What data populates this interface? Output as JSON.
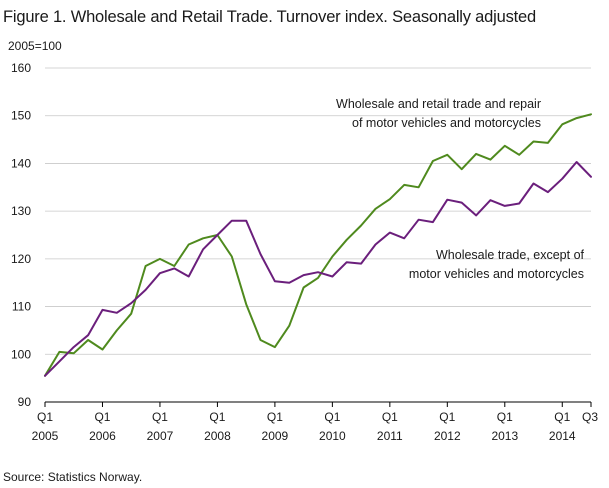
{
  "title": "Figure 1. Wholesale and Retail Trade. Turnover index. Seasonally adjusted",
  "unit_label": "2005=100",
  "source": "Source: Statistics Norway.",
  "chart_data": {
    "type": "line",
    "title": "Figure 1. Wholesale and Retail Trade. Turnover index. Seasonally adjusted",
    "ylabel": "2005=100",
    "xlabel": "",
    "ylim": [
      90,
      160
    ],
    "yticks": [
      90,
      100,
      110,
      120,
      130,
      140,
      150,
      160
    ],
    "grid": "horizontal",
    "x": [
      "2005Q1",
      "2005Q2",
      "2005Q3",
      "2005Q4",
      "2006Q1",
      "2006Q2",
      "2006Q3",
      "2006Q4",
      "2007Q1",
      "2007Q2",
      "2007Q3",
      "2007Q4",
      "2008Q1",
      "2008Q2",
      "2008Q3",
      "2008Q4",
      "2009Q1",
      "2009Q2",
      "2009Q3",
      "2009Q4",
      "2010Q1",
      "2010Q2",
      "2010Q3",
      "2010Q4",
      "2011Q1",
      "2011Q2",
      "2011Q3",
      "2011Q4",
      "2012Q1",
      "2012Q2",
      "2012Q3",
      "2012Q4",
      "2013Q1",
      "2013Q2",
      "2013Q3",
      "2013Q4",
      "2014Q1",
      "2014Q2",
      "2014Q3"
    ],
    "x_tick_labels": [
      {
        "index": 0,
        "quarter": "Q1",
        "year": "2005"
      },
      {
        "index": 4,
        "quarter": "Q1",
        "year": "2006"
      },
      {
        "index": 8,
        "quarter": "Q1",
        "year": "2007"
      },
      {
        "index": 12,
        "quarter": "Q1",
        "year": "2008"
      },
      {
        "index": 16,
        "quarter": "Q1",
        "year": "2009"
      },
      {
        "index": 20,
        "quarter": "Q1",
        "year": "2010"
      },
      {
        "index": 24,
        "quarter": "Q1",
        "year": "2011"
      },
      {
        "index": 28,
        "quarter": "Q1",
        "year": "2012"
      },
      {
        "index": 32,
        "quarter": "Q1",
        "year": "2013"
      },
      {
        "index": 36,
        "quarter": "Q1",
        "year": "2014"
      },
      {
        "index": 38,
        "quarter": "Q3",
        "year": ""
      }
    ],
    "series": [
      {
        "name": "Wholesale and retail trade and repair of motor vehicles and motorcycles",
        "label_lines": [
          "Wholesale  and retail trade and repair",
          "of motor vehicles  and motorcycles"
        ],
        "color": "#4f8a1e",
        "values": [
          95.5,
          100.5,
          100.2,
          103.0,
          101.0,
          105.0,
          108.5,
          118.5,
          120.0,
          118.5,
          123.0,
          124.3,
          125.0,
          120.5,
          110.5,
          103.0,
          101.5,
          106.0,
          114.0,
          116.0,
          120.5,
          124.0,
          127.0,
          130.5,
          132.5,
          135.5,
          135.0,
          140.5,
          141.8,
          138.8,
          142.0,
          140.8,
          143.7,
          141.8,
          144.6,
          144.3,
          148.2,
          149.5,
          150.3
        ]
      },
      {
        "name": "Wholesale trade, except of motor vehicles and motorcycles",
        "label_lines": [
          "Wholesale  trade, except of",
          "motor vehicles  and motorcycles"
        ],
        "color": "#6b1f7c",
        "values": [
          95.5,
          98.5,
          101.5,
          104.0,
          109.3,
          108.7,
          110.7,
          113.5,
          117.0,
          118.0,
          116.3,
          122.0,
          125.0,
          128.0,
          128.0,
          121.0,
          115.3,
          115.0,
          116.6,
          117.2,
          116.3,
          119.3,
          119.0,
          123.0,
          125.5,
          124.3,
          128.2,
          127.7,
          132.4,
          131.8,
          129.1,
          132.3,
          131.1,
          131.6,
          135.8,
          134.0,
          136.8,
          140.3,
          137.2
        ]
      }
    ]
  }
}
